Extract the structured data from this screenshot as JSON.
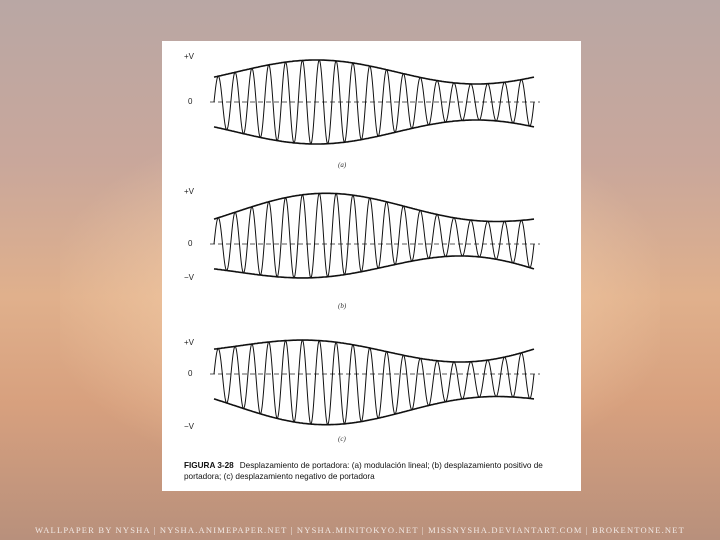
{
  "figure": {
    "panels": [
      {
        "id": "a",
        "top_label": "+V",
        "zero_label": "0",
        "bottom_label": "",
        "sub_label": "(a)",
        "shift": "none"
      },
      {
        "id": "b",
        "top_label": "+V",
        "zero_label": "0",
        "bottom_label": "−V",
        "sub_label": "(b)",
        "shift": "positive"
      },
      {
        "id": "c",
        "top_label": "+V",
        "zero_label": "0",
        "bottom_label": "−V",
        "sub_label": "(c)",
        "shift": "negative"
      }
    ],
    "caption_number": "FIGURA 3-28",
    "caption_text": "Desplazamiento de portadora: (a) modulación lineal; (b) desplazamiento positivo de portadora; (c) desplazamiento negativo de portadora"
  },
  "watermark": "WALLPAPER BY NYSHA | NYSHA.ANIMEPAPER.NET | NYSHA.MINITOKYO.NET | MISSNYSHA.DEVIANTART.COM | BROKENTONE.NET"
}
